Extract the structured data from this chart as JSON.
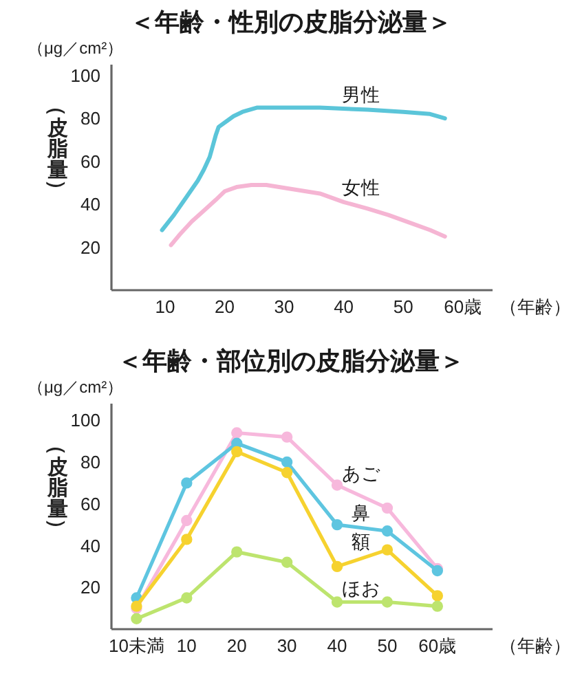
{
  "chart_data": [
    {
      "type": "line",
      "title": "＜年齢・性別の皮脂分泌量＞",
      "xlabel": "（年齢）",
      "ylabel": "（皮脂量）",
      "annotations": [
        "（μg／cm²）"
      ],
      "xlim": [
        1,
        65
      ],
      "ylim": [
        0,
        105
      ],
      "xticks": [
        10,
        20,
        30,
        40,
        50,
        {
          "value": 60,
          "label": "60歳"
        }
      ],
      "yticks": [
        20,
        40,
        60,
        80,
        100
      ],
      "marker": "none",
      "line_style": "solid",
      "series": [
        {
          "name": "男性",
          "color": "#5bc5d9",
          "x": [
            9.5,
            11.5,
            13.5,
            15.5,
            16.5,
            17.5,
            18,
            18.5,
            19,
            20.5,
            21.5,
            23,
            25.5,
            28.5,
            36,
            44,
            50,
            54.5,
            57
          ],
          "values": [
            28,
            35,
            43,
            51,
            56,
            62,
            67,
            72,
            76,
            79,
            81,
            83,
            85,
            85,
            85,
            84,
            83,
            82,
            80
          ]
        },
        {
          "name": "女性",
          "color": "#f5b5d3",
          "x": [
            11,
            12.5,
            14.5,
            16.5,
            18.5,
            20,
            22,
            24.5,
            27,
            31.5,
            36,
            40,
            44,
            47.5,
            51.5,
            54.5,
            57
          ],
          "values": [
            21,
            26,
            32,
            37,
            42,
            46,
            48,
            49,
            49,
            47,
            45,
            41,
            38,
            35,
            31,
            28,
            25
          ]
        }
      ]
    },
    {
      "type": "line",
      "title": "＜年齢・部位別の皮脂分泌量＞",
      "xlabel": "（年齢）",
      "ylabel": "（皮脂量）",
      "annotations": [
        "（μg／cm²）"
      ],
      "categories": [
        "10未満",
        "10",
        "20",
        "30",
        "40",
        "50",
        "60歳"
      ],
      "ylim": [
        0,
        108
      ],
      "yticks": [
        20,
        40,
        60,
        80,
        100
      ],
      "marker": "circle",
      "line_style": "solid",
      "series": [
        {
          "name": "あご",
          "color": "#f7b8dc",
          "values": [
            10,
            52,
            94,
            92,
            69,
            58,
            29
          ]
        },
        {
          "name": "鼻",
          "color": "#5ec5e0",
          "values": [
            15,
            70,
            89,
            80,
            50,
            47,
            28
          ]
        },
        {
          "name": "額",
          "color": "#f6d22f",
          "values": [
            11,
            43,
            85,
            75,
            30,
            38,
            16
          ]
        },
        {
          "name": "ほお",
          "color": "#bde46e",
          "values": [
            5,
            15,
            37,
            32,
            13,
            13,
            11
          ]
        }
      ]
    }
  ]
}
